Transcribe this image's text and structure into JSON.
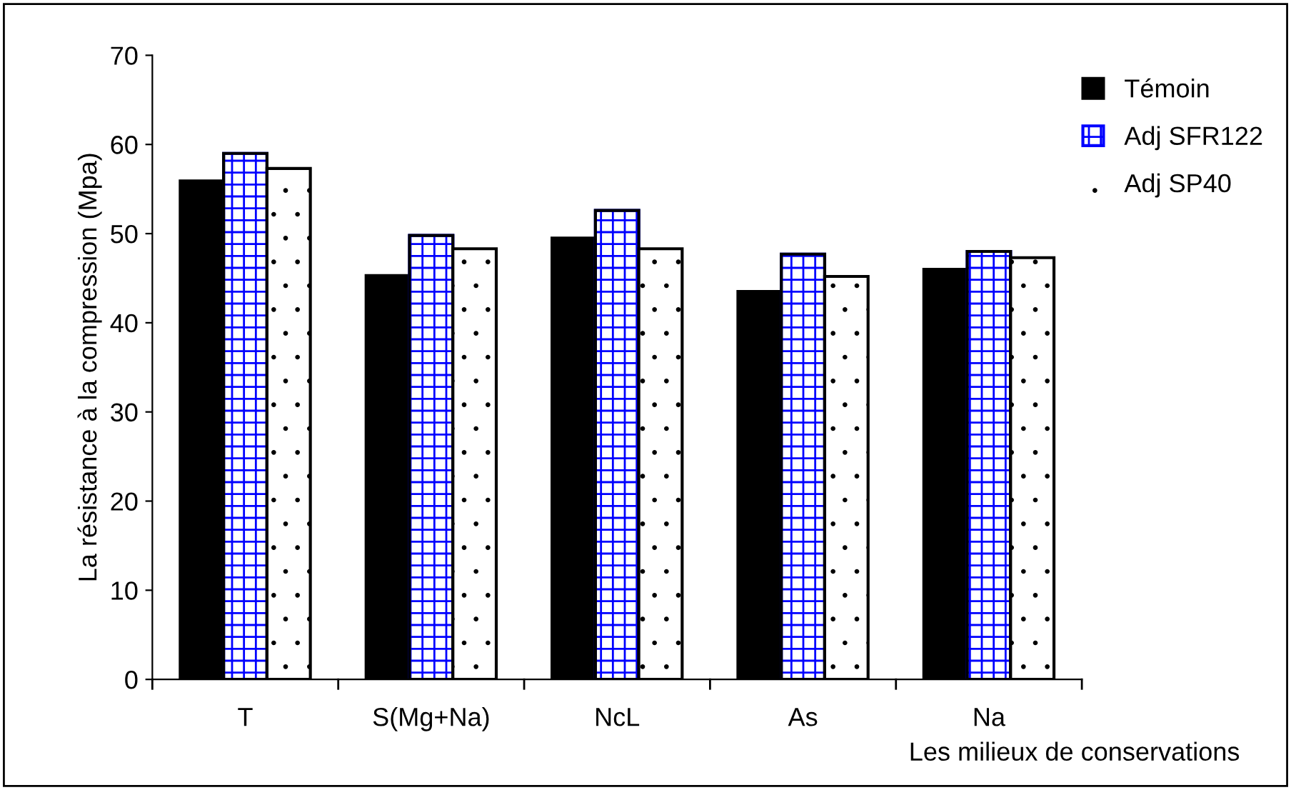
{
  "chart_data": {
    "type": "bar",
    "ylabel": "La résistance à la compression (Mpa)",
    "xlabel": "Les milieux de conservations",
    "categories": [
      "T",
      "S(Mg+Na)",
      "NcL",
      "As",
      "Na"
    ],
    "series": [
      {
        "name": "Témoin",
        "color": "#000000",
        "values": [
          55.9,
          45.3,
          49.5,
          43.5,
          46.0
        ]
      },
      {
        "name": "Adj SFR122",
        "color": "#0000ff",
        "values": [
          59.0,
          49.8,
          52.6,
          47.7,
          48.0
        ]
      },
      {
        "name": "Adj SP40",
        "color": "#ffffff",
        "values": [
          57.3,
          48.3,
          48.3,
          45.2,
          47.3
        ]
      }
    ],
    "ylim": [
      0,
      70
    ],
    "yticks": [
      0,
      10,
      20,
      30,
      40,
      50,
      60,
      70
    ],
    "grid": false,
    "legend": "top right"
  }
}
